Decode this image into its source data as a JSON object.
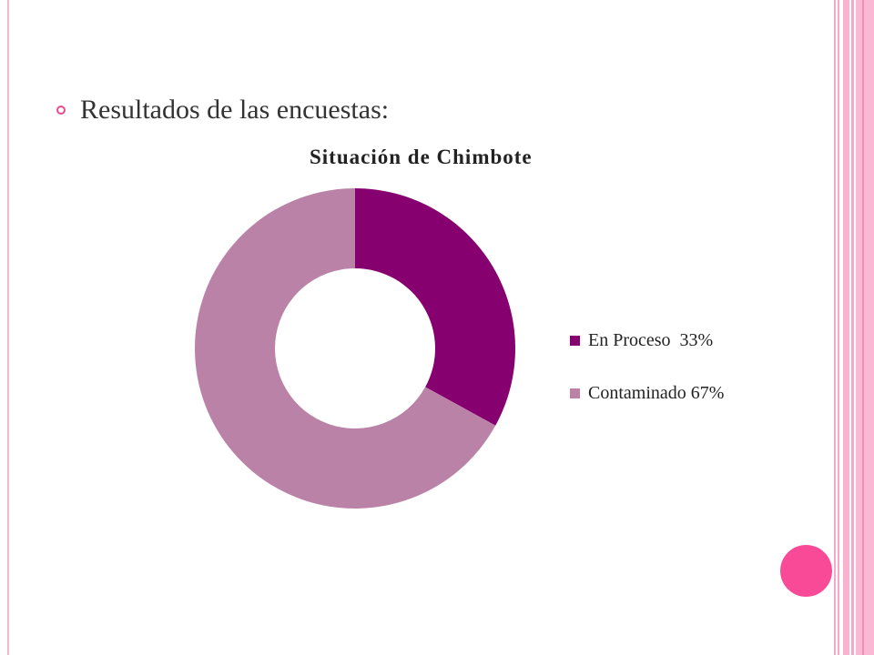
{
  "slide": {
    "bullet_text": "Resultados de las encuestas:",
    "accent_color": "#e84b8f",
    "decor_dot_color": "#f94a98"
  },
  "chart_data": {
    "type": "pie",
    "variant": "donut",
    "title": "Situación de Chimbote",
    "categories": [
      "En Proceso  33%",
      "Contaminado 67%"
    ],
    "values": [
      33,
      67
    ],
    "colors": [
      "#870070",
      "#b982a6"
    ],
    "legend_position": "right"
  }
}
